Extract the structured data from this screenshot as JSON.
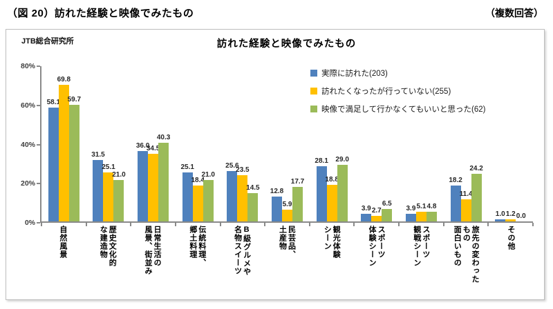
{
  "header": {
    "title": "（図 20）訪れた経験と映像でみたもの",
    "note": "（複数回答）"
  },
  "source_label": "JTB総合研究所",
  "chart_data": {
    "type": "bar",
    "title": "訪れた経験と映像でみたもの",
    "ylabel": "",
    "xlabel": "",
    "ylim": [
      0,
      80
    ],
    "yticks": [
      0,
      20,
      40,
      60,
      80
    ],
    "ytick_suffix": "%",
    "grid": false,
    "legend_position": "top-right",
    "axis_color": "#898989",
    "categories": [
      "自然風景",
      "歴史文化的\nな建造物",
      "日常生活の\n風景、街並み",
      "伝統料理、\n郷土料理",
      "B級グルメや\n名物スイーツ",
      "民芸品、\n土産物",
      "観光体験\nシーン",
      "スポーツ\n体験シーン",
      "スポーツ\n観戦シーン",
      "旅先の変わった\nもの\n面白いもの",
      "その他"
    ],
    "series": [
      {
        "name": "実際に訪れた(203)",
        "color": "#4F81BD",
        "values": [
          58.1,
          31.5,
          36.0,
          25.1,
          25.6,
          12.8,
          28.1,
          3.9,
          3.9,
          18.2,
          1.0
        ]
      },
      {
        "name": "訪れたくなったが行っていない(255)",
        "color": "#FFC000",
        "values": [
          69.8,
          25.1,
          34.5,
          18.4,
          23.5,
          5.9,
          18.8,
          2.7,
          5.1,
          11.4,
          1.2
        ]
      },
      {
        "name": "映像で満足して行かなくてもいいと思った(62)",
        "color": "#9BBB59",
        "values": [
          59.7,
          21.0,
          40.3,
          21.0,
          14.5,
          17.7,
          29.0,
          6.5,
          4.8,
          24.2,
          0.0
        ]
      }
    ]
  }
}
